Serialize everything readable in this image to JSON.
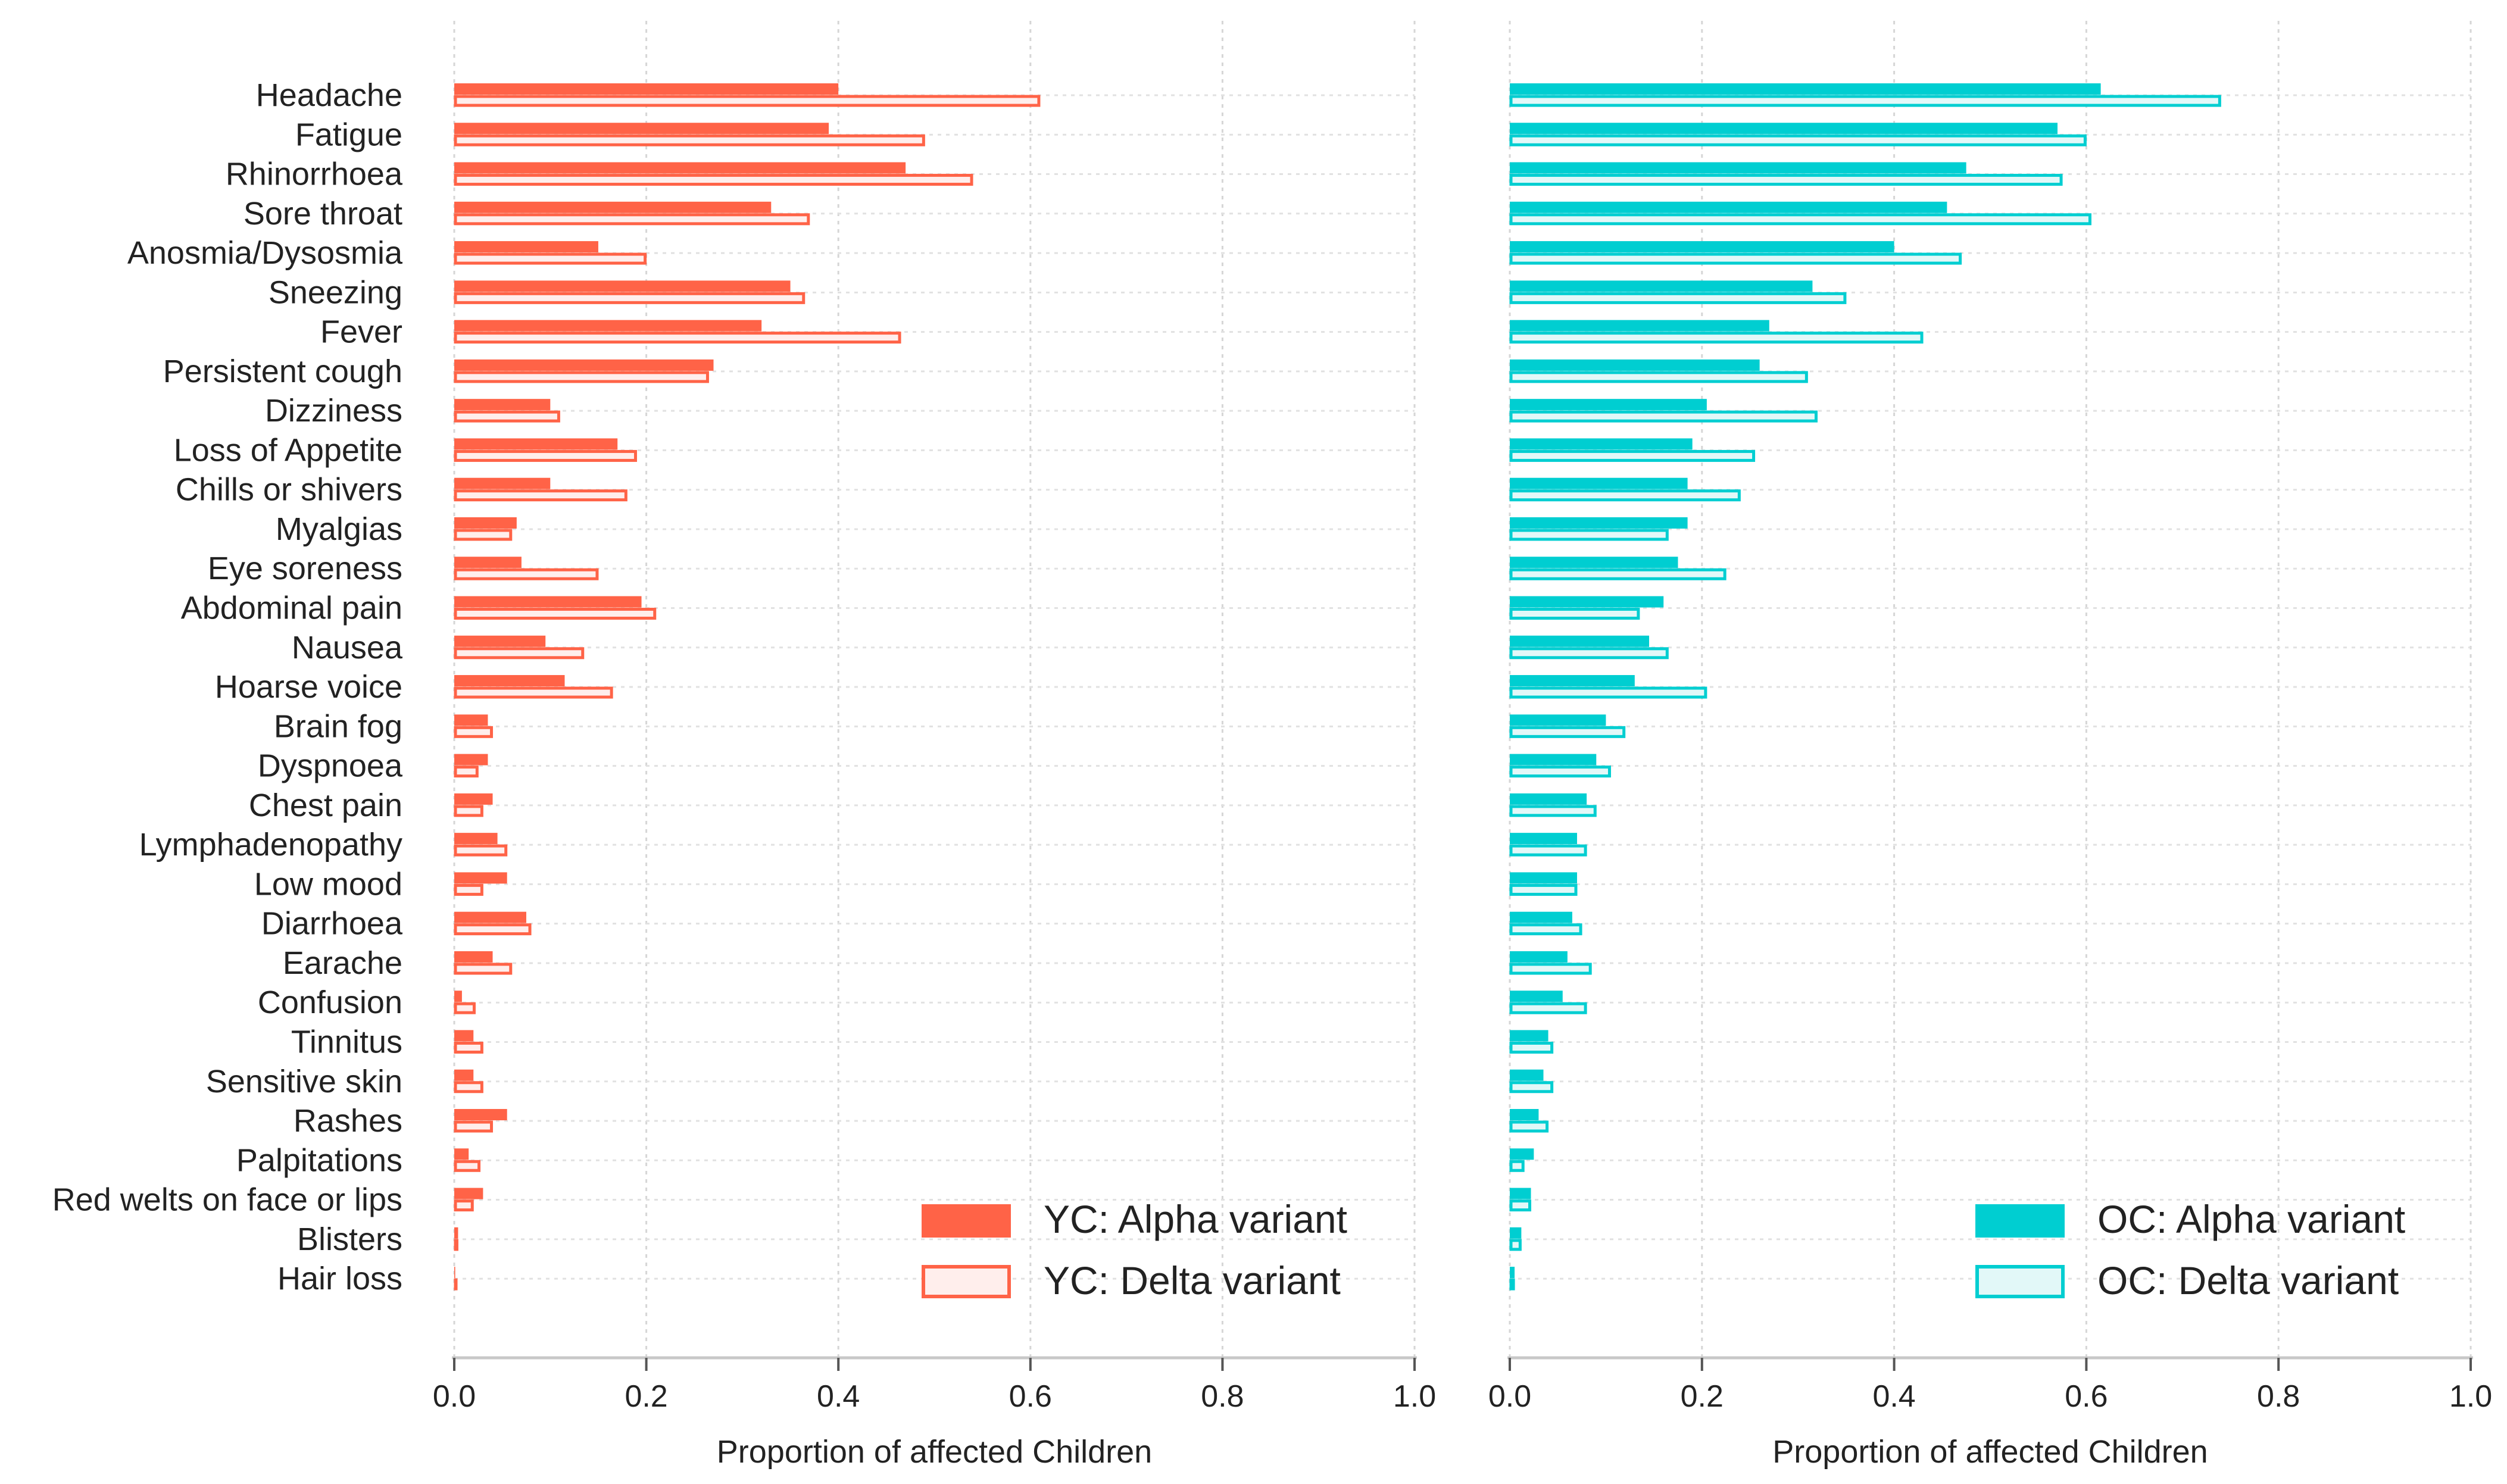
{
  "chart_data": [
    {
      "id": "yc",
      "type": "bar",
      "orientation": "horizontal",
      "title": "",
      "xlabel": "Proportion of affected Children",
      "ylabel": "",
      "xlim": [
        0,
        1
      ],
      "xticks": [
        0.0,
        0.2,
        0.4,
        0.6,
        0.8,
        1.0
      ],
      "xtick_labels": [
        "0.0",
        "0.2",
        "0.4",
        "0.6",
        "0.8",
        "1.0"
      ],
      "grid": true,
      "legend_position": "bottom-right",
      "categories": [
        "Headache",
        "Fatigue",
        "Rhinorrhoea",
        "Sore throat",
        "Anosmia/Dysosmia",
        "Sneezing",
        "Fever",
        "Persistent cough",
        "Dizziness",
        "Loss of Appetite",
        "Chills or shivers",
        "Myalgias",
        "Eye soreness",
        "Abdominal pain",
        "Nausea",
        "Hoarse voice",
        "Brain fog",
        "Dyspnoea",
        "Chest pain",
        "Lymphadenopathy",
        "Low mood",
        "Diarrhoea",
        "Earache",
        "Confusion",
        "Tinnitus",
        "Sensitive skin",
        "Rashes",
        "Palpitations",
        "Red welts on face or lips",
        "Blisters",
        "Hair loss"
      ],
      "series": [
        {
          "name": "YC: Alpha variant",
          "style": "filled",
          "color": "#FF6347",
          "values": [
            0.4,
            0.39,
            0.47,
            0.33,
            0.15,
            0.35,
            0.32,
            0.27,
            0.1,
            0.17,
            0.1,
            0.065,
            0.07,
            0.195,
            0.095,
            0.115,
            0.035,
            0.035,
            0.04,
            0.045,
            0.055,
            0.075,
            0.04,
            0.008,
            0.02,
            0.02,
            0.055,
            0.015,
            0.03,
            0.004,
            0.001
          ]
        },
        {
          "name": "YC: Delta variant",
          "style": "hollow",
          "color": "#FF6347",
          "fill": "#FFEEEC",
          "values": [
            0.61,
            0.49,
            0.54,
            0.37,
            0.2,
            0.365,
            0.465,
            0.265,
            0.11,
            0.19,
            0.18,
            0.06,
            0.15,
            0.21,
            0.135,
            0.165,
            0.04,
            0.025,
            0.03,
            0.055,
            0.03,
            0.08,
            0.06,
            0.022,
            0.03,
            0.03,
            0.04,
            0.027,
            0.02,
            0.004,
            0.001
          ]
        }
      ]
    },
    {
      "id": "oc",
      "type": "bar",
      "orientation": "horizontal",
      "title": "",
      "xlabel": "Proportion of affected Children",
      "ylabel": "",
      "xlim": [
        0,
        1
      ],
      "xticks": [
        0.0,
        0.2,
        0.4,
        0.6,
        0.8,
        1.0
      ],
      "xtick_labels": [
        "0.0",
        "0.2",
        "0.4",
        "0.6",
        "0.8",
        "1.0"
      ],
      "grid": true,
      "legend_position": "bottom-right",
      "categories": [
        "Headache",
        "Fatigue",
        "Rhinorrhoea",
        "Sore throat",
        "Anosmia/Dysosmia",
        "Sneezing",
        "Fever",
        "Persistent cough",
        "Dizziness",
        "Loss of Appetite",
        "Chills or shivers",
        "Myalgias",
        "Eye soreness",
        "Abdominal pain",
        "Nausea",
        "Hoarse voice",
        "Brain fog",
        "Dyspnoea",
        "Chest pain",
        "Lymphadenopathy",
        "Low mood",
        "Diarrhoea",
        "Earache",
        "Confusion",
        "Tinnitus",
        "Sensitive skin",
        "Rashes",
        "Palpitations",
        "Red welts on face or lips",
        "Blisters",
        "Hair loss"
      ],
      "series": [
        {
          "name": "OC: Alpha variant",
          "style": "filled",
          "color": "#00CED1",
          "values": [
            0.615,
            0.57,
            0.475,
            0.455,
            0.4,
            0.315,
            0.27,
            0.26,
            0.205,
            0.19,
            0.185,
            0.185,
            0.175,
            0.16,
            0.145,
            0.13,
            0.1,
            0.09,
            0.08,
            0.07,
            0.07,
            0.065,
            0.06,
            0.055,
            0.04,
            0.035,
            0.03,
            0.025,
            0.022,
            0.012,
            0.005
          ]
        },
        {
          "name": "OC: Delta variant",
          "style": "hollow",
          "color": "#00CED1",
          "fill": "#E2F8F8",
          "values": [
            0.74,
            0.6,
            0.575,
            0.605,
            0.47,
            0.35,
            0.43,
            0.31,
            0.32,
            0.255,
            0.24,
            0.165,
            0.225,
            0.135,
            0.165,
            0.205,
            0.12,
            0.105,
            0.09,
            0.08,
            0.07,
            0.075,
            0.085,
            0.08,
            0.045,
            0.045,
            0.04,
            0.015,
            0.022,
            0.012,
            0.005
          ]
        }
      ]
    }
  ]
}
